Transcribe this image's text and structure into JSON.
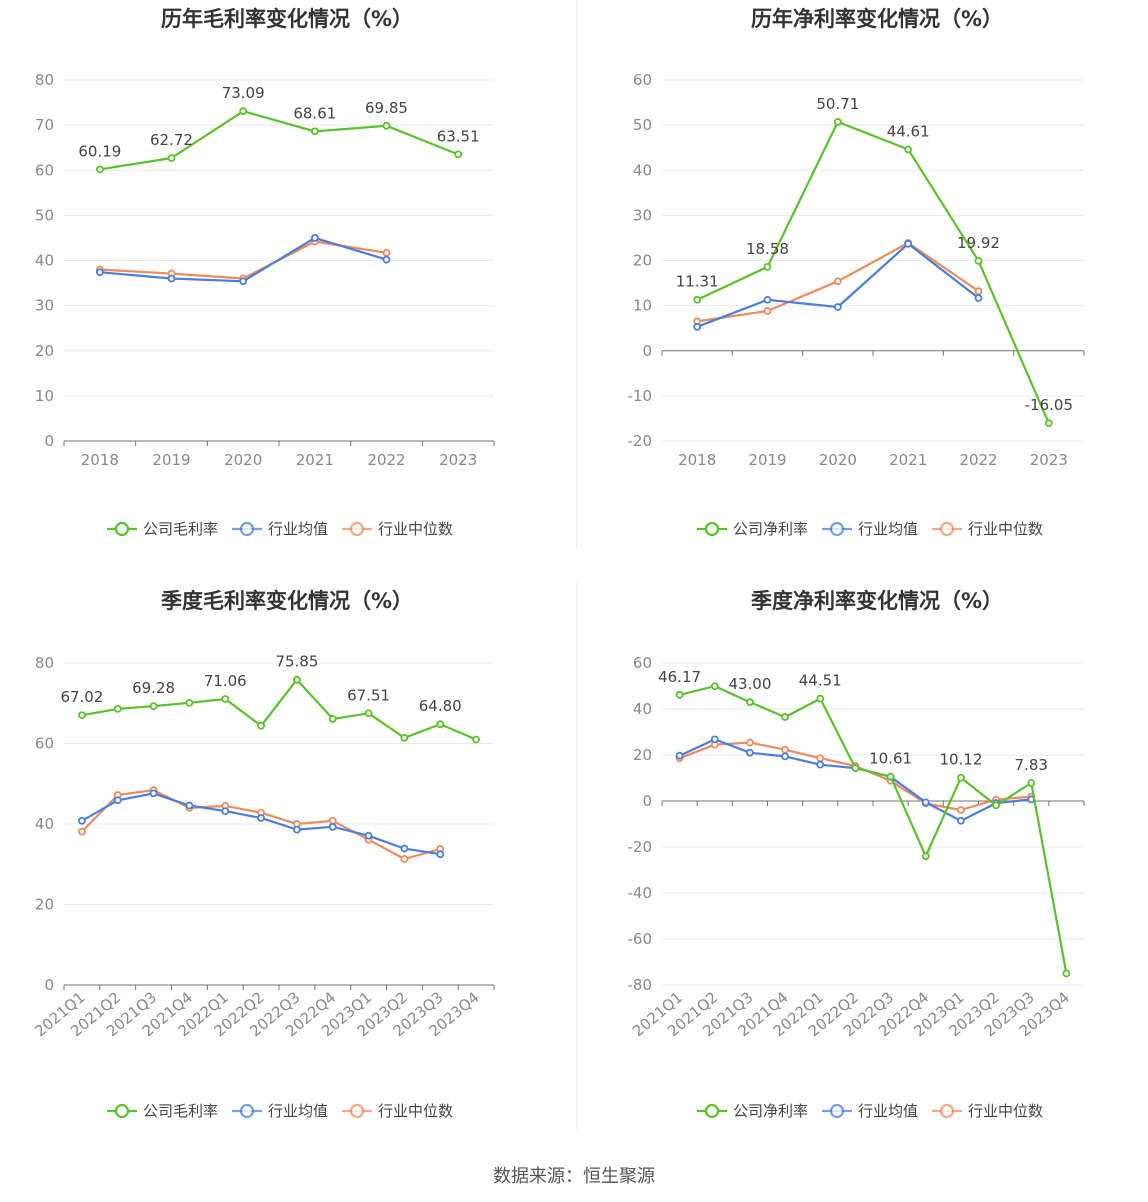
{
  "source": "数据来源：恒生聚源",
  "colors": {
    "company": "#5ac12b",
    "avg": "#4a7ddd",
    "median": "#ef8a5c"
  },
  "chart_data": [
    {
      "type": "line",
      "title": "历年毛利率变化情况（%）",
      "x": [
        "2018",
        "2019",
        "2020",
        "2021",
        "2022",
        "2023"
      ],
      "ylim": [
        0,
        80
      ],
      "yticks": [
        0,
        10,
        20,
        30,
        40,
        50,
        60,
        70,
        80
      ],
      "grid": true,
      "legend": "bottom",
      "series": [
        {
          "name": "公司毛利率",
          "key": "company",
          "values": [
            60.19,
            62.72,
            73.09,
            68.61,
            69.85,
            63.51
          ],
          "labels": [
            "60.19",
            "62.72",
            "73.09",
            "68.61",
            "69.85",
            "63.51"
          ]
        },
        {
          "name": "行业均值",
          "key": "avg",
          "values": [
            37.4,
            36.0,
            35.4,
            45.0,
            40.2,
            null
          ]
        },
        {
          "name": "行业中位数",
          "key": "median",
          "values": [
            38.0,
            37.1,
            36.0,
            44.2,
            41.7,
            null
          ]
        }
      ]
    },
    {
      "type": "line",
      "title": "历年净利率变化情况（%）",
      "x": [
        "2018",
        "2019",
        "2020",
        "2021",
        "2022",
        "2023"
      ],
      "ylim": [
        -20,
        60
      ],
      "yticks": [
        -20,
        -10,
        0,
        10,
        20,
        30,
        40,
        50,
        60
      ],
      "grid": true,
      "legend": "bottom",
      "series": [
        {
          "name": "公司净利率",
          "key": "company",
          "values": [
            11.31,
            18.58,
            50.71,
            44.61,
            19.92,
            -16.05
          ],
          "labels": [
            "11.31",
            "18.58",
            "50.71",
            "44.61",
            "19.92",
            "-16.05"
          ]
        },
        {
          "name": "行业均值",
          "key": "avg",
          "values": [
            5.3,
            11.3,
            9.7,
            23.7,
            11.7,
            null
          ]
        },
        {
          "name": "行业中位数",
          "key": "median",
          "values": [
            6.5,
            8.8,
            15.4,
            23.9,
            13.2,
            null
          ]
        }
      ]
    },
    {
      "type": "line",
      "title": "季度毛利率变化情况（%）",
      "x": [
        "2021Q1",
        "2021Q2",
        "2021Q3",
        "2021Q4",
        "2022Q1",
        "2022Q2",
        "2022Q3",
        "2022Q4",
        "2023Q1",
        "2023Q2",
        "2023Q3",
        "2023Q4"
      ],
      "ylim": [
        0,
        80
      ],
      "yticks": [
        0,
        20,
        40,
        60,
        80
      ],
      "grid": true,
      "legend": "bottom",
      "series": [
        {
          "name": "公司毛利率",
          "key": "company",
          "values": [
            67.02,
            68.6,
            69.28,
            70.1,
            71.06,
            64.4,
            75.85,
            66.1,
            67.51,
            61.4,
            64.8,
            61.0
          ],
          "labels": [
            "67.02",
            "",
            "69.28",
            "",
            "71.06",
            "",
            "75.85",
            "",
            "67.51",
            "",
            "64.80",
            ""
          ]
        },
        {
          "name": "行业均值",
          "key": "avg",
          "values": [
            40.8,
            45.9,
            47.6,
            44.6,
            43.2,
            41.5,
            38.6,
            39.3,
            37.1,
            33.9,
            32.5,
            null
          ]
        },
        {
          "name": "行业中位数",
          "key": "median",
          "values": [
            38.1,
            47.2,
            48.4,
            44.0,
            44.5,
            42.8,
            40.0,
            40.8,
            36.1,
            31.3,
            33.8,
            null
          ]
        }
      ]
    },
    {
      "type": "line",
      "title": "季度净利率变化情况（%）",
      "x": [
        "2021Q1",
        "2021Q2",
        "2021Q3",
        "2021Q4",
        "2022Q1",
        "2022Q2",
        "2022Q3",
        "2022Q4",
        "2023Q1",
        "2023Q2",
        "2023Q3",
        "2023Q4"
      ],
      "ylim": [
        -80,
        60
      ],
      "yticks": [
        -80,
        -60,
        -40,
        -20,
        0,
        20,
        40,
        60
      ],
      "grid": true,
      "legend": "bottom",
      "series": [
        {
          "name": "公司净利率",
          "key": "company",
          "values": [
            46.17,
            49.9,
            43.0,
            36.5,
            44.51,
            14.3,
            10.61,
            -24.0,
            10.12,
            -1.9,
            7.83,
            -75.0
          ],
          "labels": [
            "46.17",
            "",
            "43.00",
            "",
            "44.51",
            "",
            "10.61",
            "",
            "10.12",
            "",
            "7.83",
            ""
          ]
        },
        {
          "name": "行业均值",
          "key": "avg",
          "values": [
            19.7,
            26.8,
            21.0,
            19.4,
            15.8,
            14.3,
            10.5,
            -0.6,
            -8.6,
            -0.9,
            0.7,
            null
          ]
        },
        {
          "name": "行业中位数",
          "key": "median",
          "values": [
            18.6,
            24.5,
            25.4,
            22.3,
            18.6,
            15.2,
            8.8,
            -1.1,
            -3.9,
            0.6,
            1.9,
            null
          ]
        }
      ]
    }
  ]
}
